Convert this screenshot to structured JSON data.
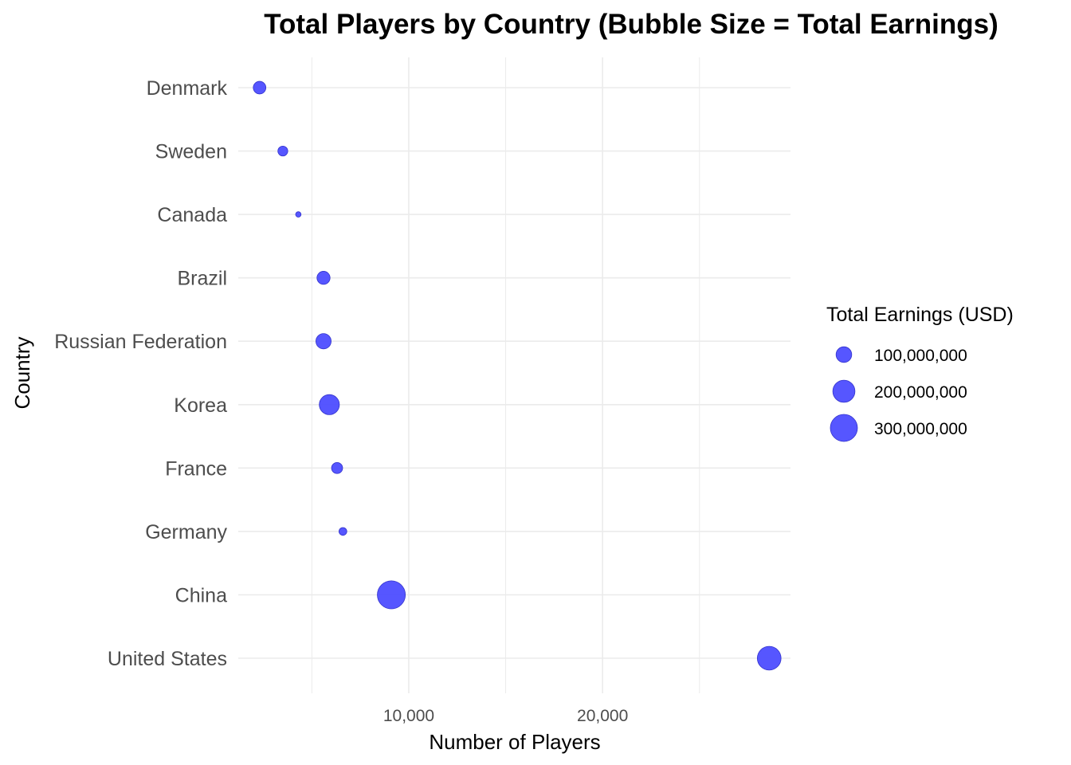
{
  "chart_data": {
    "type": "scatter",
    "title": "Total Players by Country (Bubble Size = Total Earnings)",
    "xlabel": "Number of Players",
    "ylabel": "Country",
    "x_ticks": [
      10000,
      20000
    ],
    "x_tick_labels": [
      "10,000",
      "20,000"
    ],
    "xlim": [
      1200,
      29700
    ],
    "grid": true,
    "size_legend": {
      "title": "Total Earnings (USD)",
      "placement": "right",
      "values": [
        100000000,
        200000000,
        300000000
      ],
      "labels": [
        "100,000,000",
        "200,000,000",
        "300,000,000"
      ]
    },
    "marker_color": "#4D4DFF",
    "categories": [
      "United States",
      "China",
      "Germany",
      "France",
      "Korea",
      "Russian Federation",
      "Brazil",
      "Canada",
      "Sweden",
      "Denmark"
    ],
    "points": [
      {
        "country": "United States",
        "players": 28600,
        "earnings": 230000000
      },
      {
        "country": "China",
        "players": 9100,
        "earnings": 320000000
      },
      {
        "country": "Germany",
        "players": 6600,
        "earnings": 25000000
      },
      {
        "country": "France",
        "players": 6300,
        "earnings": 50000000
      },
      {
        "country": "Korea",
        "players": 5900,
        "earnings": 165000000
      },
      {
        "country": "Russian Federation",
        "players": 5600,
        "earnings": 95000000
      },
      {
        "country": "Brazil",
        "players": 5600,
        "earnings": 70000000
      },
      {
        "country": "Canada",
        "players": 4300,
        "earnings": 12000000
      },
      {
        "country": "Sweden",
        "players": 3500,
        "earnings": 40000000
      },
      {
        "country": "Denmark",
        "players": 2300,
        "earnings": 65000000
      }
    ]
  }
}
